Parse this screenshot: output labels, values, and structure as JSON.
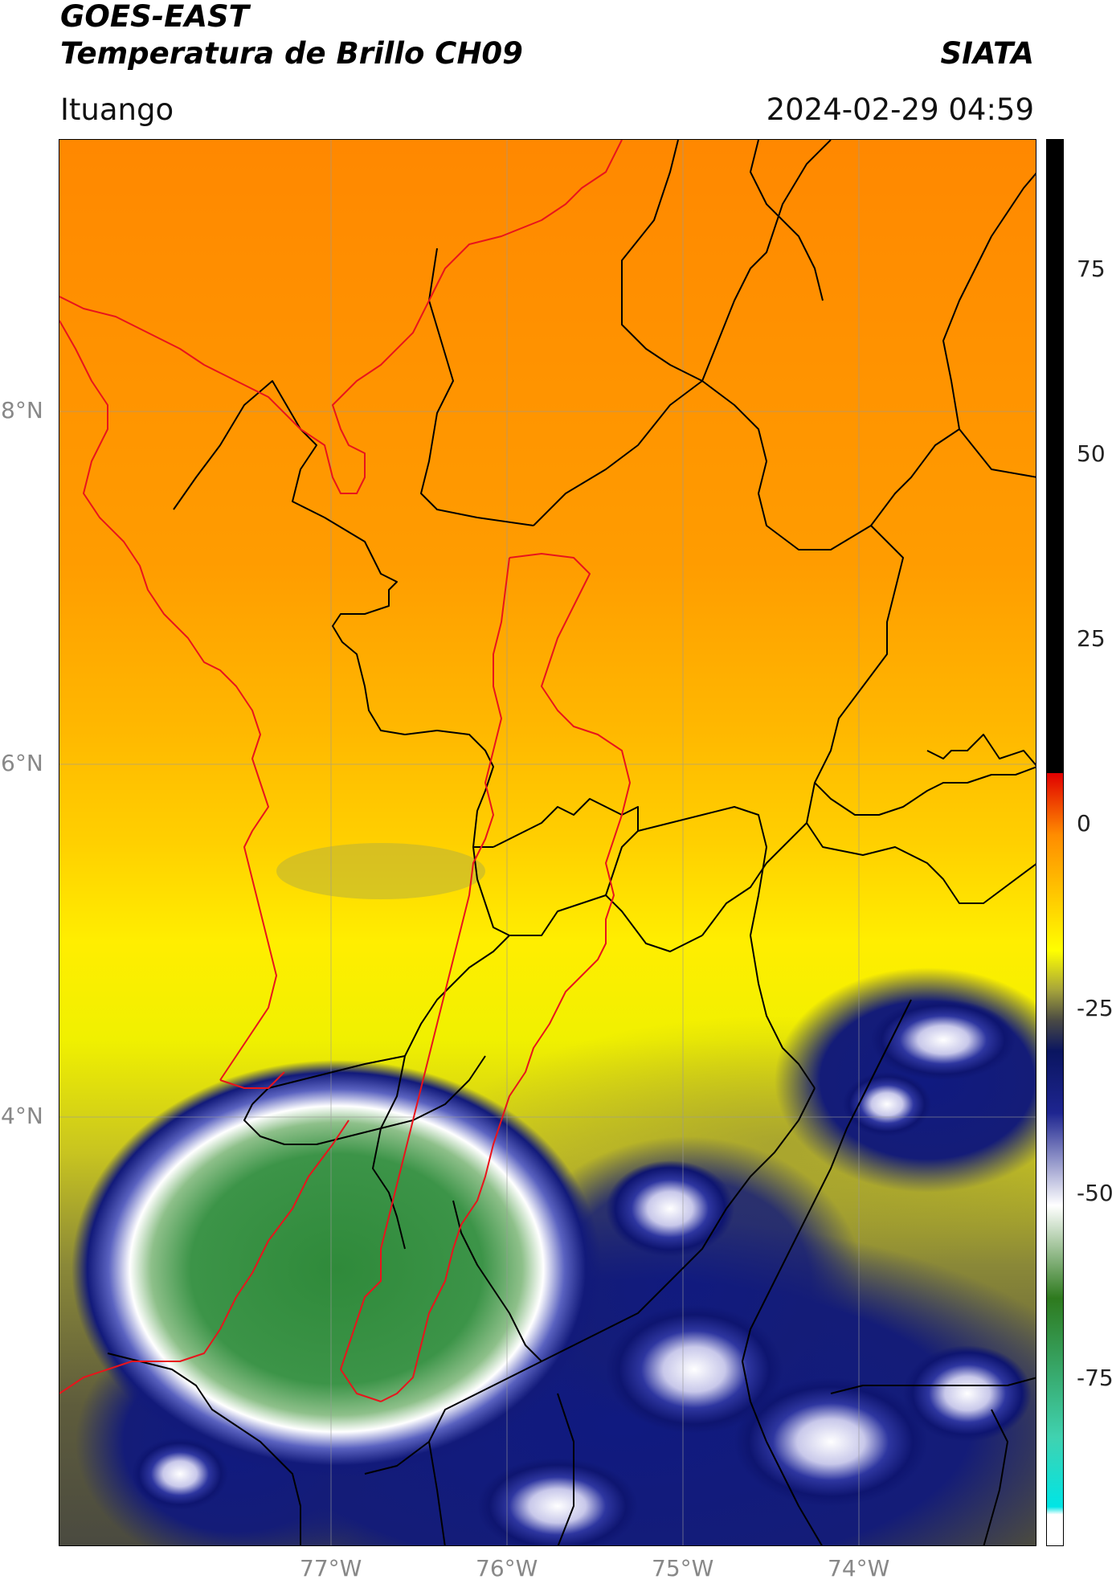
{
  "header": {
    "satellite": "GOES-EAST",
    "product": "Temperatura de Brillo CH09",
    "org": "SIATA",
    "region": "Ituango",
    "datetime": "2024-02-29 04:59"
  },
  "map": {
    "lat_labels": [
      "8°N",
      "6°N",
      "4°N"
    ],
    "lon_labels": [
      "77°W",
      "76°W",
      "75°W",
      "74°W"
    ],
    "border_colors": {
      "admin": "#000000",
      "basin": "#e8141c"
    }
  },
  "colorbar": {
    "ticks": [
      "75",
      "50",
      "25",
      "0",
      "-25",
      "-50",
      "-75"
    ],
    "stops": [
      {
        "v": 90,
        "c": "#000000"
      },
      {
        "v": 8,
        "c": "#000000"
      },
      {
        "v": 8,
        "c": "#e00000"
      },
      {
        "v": 0,
        "c": "#ff8c00"
      },
      {
        "v": -15,
        "c": "#ffff00"
      },
      {
        "v": -20,
        "c": "#a8a63a"
      },
      {
        "v": -24,
        "c": "#4a4a44"
      },
      {
        "v": -28,
        "c": "#0a1560"
      },
      {
        "v": -36,
        "c": "#1e2590"
      },
      {
        "v": -48,
        "c": "#ffffff"
      },
      {
        "v": -60,
        "c": "#2e7a1e"
      },
      {
        "v": -78,
        "c": "#40d2b0"
      },
      {
        "v": -87,
        "c": "#00e5e5"
      },
      {
        "v": -88,
        "c": "#ffffff"
      },
      {
        "v": -92,
        "c": "#ffffff"
      }
    ]
  }
}
